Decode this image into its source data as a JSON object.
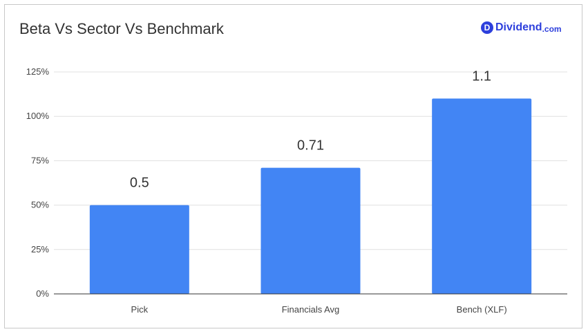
{
  "chart_data": {
    "type": "bar",
    "title": "Beta Vs Sector Vs Benchmark",
    "categories": [
      "Pick",
      "Financials Avg",
      "Bench (XLF)"
    ],
    "values": [
      0.5,
      0.71,
      1.1
    ],
    "data_labels": [
      "0.5",
      "0.71",
      "1.1"
    ],
    "y_ticks": [
      {
        "value": 0,
        "label": "0%"
      },
      {
        "value": 0.25,
        "label": "25%"
      },
      {
        "value": 0.5,
        "label": "50%"
      },
      {
        "value": 0.75,
        "label": "75%"
      },
      {
        "value": 1.0,
        "label": "100%"
      },
      {
        "value": 1.25,
        "label": "125%"
      }
    ],
    "ylim": [
      0,
      1.25
    ],
    "xlabel": "",
    "ylabel": "",
    "grid": true,
    "legend": "none",
    "bar_color": "#4285f4"
  },
  "brand": {
    "logo_letter": "D",
    "name": "Dividend",
    "suffix": ".com",
    "color": "#2d3fdc"
  }
}
